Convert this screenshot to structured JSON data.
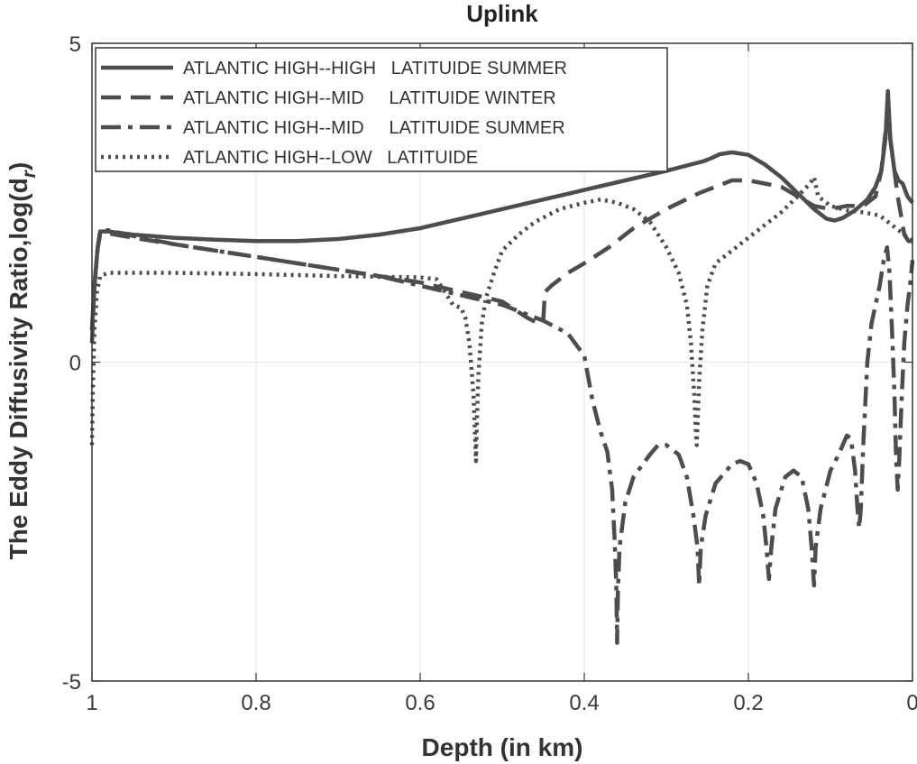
{
  "chart_data": {
    "type": "line",
    "title": "Uplink",
    "xlabel": "Depth (in km)",
    "ylabel": "The Eddy Diffusivity Ratio,log(d",
    "ylabel_sub": "r",
    "ylabel_close": ")",
    "xlim": [
      1,
      0
    ],
    "ylim": [
      -5,
      5
    ],
    "x_reversed": true,
    "xticks": [
      1,
      0.8,
      0.6,
      0.4,
      0.2,
      0
    ],
    "xtick_labels": [
      "1",
      "0.8",
      "0.6",
      "0.4",
      "0.2",
      "0"
    ],
    "yticks": [
      -5,
      0,
      5
    ],
    "ytick_labels": [
      "-5",
      "0",
      "5"
    ],
    "grid": true,
    "legend_position": "top-left",
    "colors": {
      "line": "#4d4d4d",
      "grid": "#e3e3e3",
      "axes": "#333333"
    },
    "series": [
      {
        "name": "ATLANTIC HIGH--HIGH   LATITUIDE SUMMER",
        "style": "solid",
        "points": [
          [
            1.0,
            0.5
          ],
          [
            0.997,
            1.2
          ],
          [
            0.993,
            1.8
          ],
          [
            0.99,
            2.05
          ],
          [
            0.98,
            2.05
          ],
          [
            0.95,
            2.0
          ],
          [
            0.9,
            1.95
          ],
          [
            0.85,
            1.92
          ],
          [
            0.8,
            1.9
          ],
          [
            0.75,
            1.9
          ],
          [
            0.7,
            1.93
          ],
          [
            0.65,
            2.0
          ],
          [
            0.6,
            2.1
          ],
          [
            0.55,
            2.25
          ],
          [
            0.5,
            2.4
          ],
          [
            0.45,
            2.55
          ],
          [
            0.4,
            2.7
          ],
          [
            0.35,
            2.85
          ],
          [
            0.3,
            3.0
          ],
          [
            0.255,
            3.15
          ],
          [
            0.245,
            3.2
          ],
          [
            0.235,
            3.26
          ],
          [
            0.22,
            3.29
          ],
          [
            0.2,
            3.25
          ],
          [
            0.18,
            3.1
          ],
          [
            0.16,
            2.9
          ],
          [
            0.14,
            2.65
          ],
          [
            0.12,
            2.4
          ],
          [
            0.105,
            2.25
          ],
          [
            0.095,
            2.22
          ],
          [
            0.085,
            2.26
          ],
          [
            0.07,
            2.38
          ],
          [
            0.055,
            2.55
          ],
          [
            0.045,
            2.75
          ],
          [
            0.038,
            3.0
          ],
          [
            0.033,
            3.5
          ],
          [
            0.03,
            4.25
          ],
          [
            0.027,
            3.5
          ],
          [
            0.022,
            3.0
          ],
          [
            0.017,
            2.85
          ],
          [
            0.012,
            2.8
          ],
          [
            0.006,
            2.6
          ],
          [
            0.0,
            2.5
          ]
        ]
      },
      {
        "name": "ATLANTIC HIGH--MID     LATITUIDE WINTER",
        "style": "dashed",
        "points": [
          [
            1.0,
            0.3
          ],
          [
            0.997,
            1.2
          ],
          [
            0.993,
            1.8
          ],
          [
            0.99,
            2.0
          ],
          [
            0.98,
            2.02
          ],
          [
            0.95,
            1.95
          ],
          [
            0.9,
            1.85
          ],
          [
            0.85,
            1.75
          ],
          [
            0.8,
            1.65
          ],
          [
            0.75,
            1.55
          ],
          [
            0.7,
            1.45
          ],
          [
            0.65,
            1.35
          ],
          [
            0.6,
            1.25
          ],
          [
            0.55,
            1.1
          ],
          [
            0.5,
            0.95
          ],
          [
            0.47,
            0.7
          ],
          [
            0.455,
            0.6
          ],
          [
            0.45,
            0.65
          ],
          [
            0.448,
            1.1
          ],
          [
            0.44,
            1.2
          ],
          [
            0.42,
            1.4
          ],
          [
            0.4,
            1.55
          ],
          [
            0.37,
            1.8
          ],
          [
            0.34,
            2.1
          ],
          [
            0.3,
            2.4
          ],
          [
            0.26,
            2.65
          ],
          [
            0.22,
            2.85
          ],
          [
            0.2,
            2.85
          ],
          [
            0.18,
            2.8
          ],
          [
            0.16,
            2.75
          ],
          [
            0.14,
            2.6
          ],
          [
            0.12,
            2.45
          ],
          [
            0.1,
            2.4
          ],
          [
            0.08,
            2.45
          ],
          [
            0.06,
            2.45
          ],
          [
            0.045,
            2.6
          ],
          [
            0.038,
            3.0
          ],
          [
            0.033,
            3.6
          ],
          [
            0.03,
            4.1
          ],
          [
            0.027,
            3.5
          ],
          [
            0.022,
            3.0
          ],
          [
            0.018,
            2.6
          ],
          [
            0.014,
            2.3
          ],
          [
            0.01,
            2.0
          ],
          [
            0.005,
            1.9
          ],
          [
            0.0,
            1.9
          ]
        ]
      },
      {
        "name": "ATLANTIC HIGH--MID     LATITUIDE SUMMER",
        "style": "dashdot",
        "points": [
          [
            1.0,
            0.5
          ],
          [
            0.997,
            1.2
          ],
          [
            0.993,
            1.8
          ],
          [
            0.99,
            2.05
          ],
          [
            0.98,
            2.07
          ],
          [
            0.95,
            1.98
          ],
          [
            0.9,
            1.85
          ],
          [
            0.85,
            1.75
          ],
          [
            0.8,
            1.65
          ],
          [
            0.75,
            1.55
          ],
          [
            0.7,
            1.45
          ],
          [
            0.65,
            1.35
          ],
          [
            0.6,
            1.2
          ],
          [
            0.55,
            1.05
          ],
          [
            0.5,
            0.9
          ],
          [
            0.45,
            0.65
          ],
          [
            0.42,
            0.45
          ],
          [
            0.4,
            0.1
          ],
          [
            0.39,
            -0.6
          ],
          [
            0.38,
            -1.1
          ],
          [
            0.372,
            -1.4
          ],
          [
            0.366,
            -2.0
          ],
          [
            0.363,
            -2.8
          ],
          [
            0.361,
            -3.5
          ],
          [
            0.36,
            -4.4
          ],
          [
            0.359,
            -3.6
          ],
          [
            0.357,
            -2.9
          ],
          [
            0.35,
            -2.2
          ],
          [
            0.34,
            -1.8
          ],
          [
            0.32,
            -1.45
          ],
          [
            0.31,
            -1.3
          ],
          [
            0.3,
            -1.3
          ],
          [
            0.285,
            -1.45
          ],
          [
            0.275,
            -1.8
          ],
          [
            0.267,
            -2.4
          ],
          [
            0.262,
            -2.9
          ],
          [
            0.26,
            -3.5
          ],
          [
            0.258,
            -2.9
          ],
          [
            0.252,
            -2.4
          ],
          [
            0.24,
            -1.9
          ],
          [
            0.22,
            -1.6
          ],
          [
            0.21,
            -1.55
          ],
          [
            0.2,
            -1.6
          ],
          [
            0.19,
            -1.9
          ],
          [
            0.182,
            -2.4
          ],
          [
            0.178,
            -2.9
          ],
          [
            0.175,
            -3.4
          ],
          [
            0.172,
            -2.9
          ],
          [
            0.167,
            -2.3
          ],
          [
            0.155,
            -1.8
          ],
          [
            0.145,
            -1.7
          ],
          [
            0.135,
            -1.8
          ],
          [
            0.127,
            -2.3
          ],
          [
            0.123,
            -2.9
          ],
          [
            0.12,
            -3.5
          ],
          [
            0.118,
            -2.9
          ],
          [
            0.112,
            -2.3
          ],
          [
            0.1,
            -1.7
          ],
          [
            0.09,
            -1.45
          ],
          [
            0.08,
            -1.15
          ],
          [
            0.075,
            -1.2
          ],
          [
            0.07,
            -1.7
          ],
          [
            0.067,
            -2.3
          ],
          [
            0.065,
            -2.6
          ],
          [
            0.063,
            -2.3
          ],
          [
            0.06,
            -1.3
          ],
          [
            0.055,
            0.0
          ],
          [
            0.05,
            0.6
          ],
          [
            0.045,
            0.9
          ],
          [
            0.04,
            1.2
          ],
          [
            0.035,
            1.6
          ],
          [
            0.031,
            1.8
          ],
          [
            0.028,
            1.4
          ],
          [
            0.025,
            0.5
          ],
          [
            0.022,
            -0.5
          ],
          [
            0.02,
            -1.5
          ],
          [
            0.018,
            -2.0
          ],
          [
            0.016,
            -1.5
          ],
          [
            0.013,
            -0.5
          ],
          [
            0.01,
            0.3
          ],
          [
            0.006,
            0.9
          ],
          [
            0.003,
            1.2
          ],
          [
            0.0,
            1.6
          ]
        ]
      },
      {
        "name": "ATLANTIC HIGH--LOW   LATITUIDE",
        "style": "dotted",
        "points": [
          [
            1.0,
            -1.3
          ],
          [
            0.999,
            -0.5
          ],
          [
            0.997,
            0.5
          ],
          [
            0.994,
            1.1
          ],
          [
            0.99,
            1.35
          ],
          [
            0.98,
            1.4
          ],
          [
            0.9,
            1.4
          ],
          [
            0.8,
            1.38
          ],
          [
            0.7,
            1.35
          ],
          [
            0.6,
            1.33
          ],
          [
            0.58,
            1.3
          ],
          [
            0.57,
            1.1
          ],
          [
            0.56,
            0.9
          ],
          [
            0.55,
            0.85
          ],
          [
            0.545,
            0.7
          ],
          [
            0.54,
            0.3
          ],
          [
            0.535,
            -0.5
          ],
          [
            0.533,
            -1.2
          ],
          [
            0.532,
            -1.55
          ],
          [
            0.531,
            -1.0
          ],
          [
            0.529,
            -0.2
          ],
          [
            0.525,
            0.6
          ],
          [
            0.52,
            1.0
          ],
          [
            0.51,
            1.4
          ],
          [
            0.5,
            1.75
          ],
          [
            0.48,
            2.0
          ],
          [
            0.46,
            2.2
          ],
          [
            0.43,
            2.4
          ],
          [
            0.4,
            2.5
          ],
          [
            0.38,
            2.55
          ],
          [
            0.36,
            2.5
          ],
          [
            0.34,
            2.4
          ],
          [
            0.32,
            2.2
          ],
          [
            0.3,
            1.8
          ],
          [
            0.285,
            1.4
          ],
          [
            0.275,
            0.9
          ],
          [
            0.27,
            0.3
          ],
          [
            0.266,
            -0.5
          ],
          [
            0.264,
            -1.1
          ],
          [
            0.263,
            -1.3
          ],
          [
            0.262,
            -1.0
          ],
          [
            0.26,
            -0.3
          ],
          [
            0.256,
            0.5
          ],
          [
            0.25,
            1.2
          ],
          [
            0.24,
            1.55
          ],
          [
            0.22,
            1.75
          ],
          [
            0.2,
            1.95
          ],
          [
            0.18,
            2.15
          ],
          [
            0.16,
            2.35
          ],
          [
            0.14,
            2.6
          ],
          [
            0.125,
            2.8
          ],
          [
            0.12,
            2.9
          ],
          [
            0.115,
            2.6
          ],
          [
            0.1,
            2.45
          ],
          [
            0.08,
            2.38
          ],
          [
            0.06,
            2.35
          ],
          [
            0.04,
            2.3
          ],
          [
            0.02,
            2.1
          ],
          [
            0.0,
            1.9
          ]
        ]
      }
    ]
  }
}
